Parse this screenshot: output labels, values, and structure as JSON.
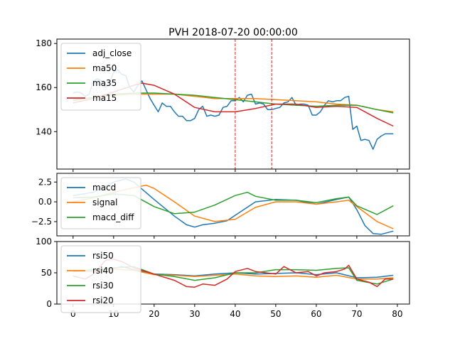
{
  "chart_data": [
    {
      "type": "line",
      "title": "PVH 2018-07-20 00:00:00",
      "xlim": [
        -4,
        83
      ],
      "ylim": [
        123,
        182
      ],
      "yticks": [
        140,
        160,
        180
      ],
      "xticks": [],
      "vlines": [
        40,
        49
      ],
      "vline_color": "#d62728",
      "legend": "upper-left",
      "series": [
        {
          "name": "adj_close",
          "color": "#1f77b4",
          "x": [
            0,
            1,
            2,
            3,
            4,
            5,
            6,
            7,
            8,
            9,
            10,
            11,
            12,
            13,
            14,
            15,
            16,
            17,
            18,
            19,
            20,
            21,
            22,
            23,
            24,
            25,
            26,
            27,
            28,
            29,
            30,
            31,
            32,
            33,
            34,
            35,
            36,
            37,
            38,
            39,
            40,
            41,
            42,
            43,
            44,
            45,
            46,
            47,
            48,
            49,
            50,
            51,
            52,
            53,
            54,
            55,
            56,
            57,
            58,
            59,
            60,
            61,
            62,
            63,
            64,
            65,
            66,
            67,
            68,
            69,
            70,
            71,
            72,
            73,
            74,
            75,
            76,
            77,
            78,
            79
          ],
          "y": [
            157.5,
            158,
            157.5,
            156,
            157,
            163,
            164,
            163,
            160,
            162,
            167,
            168,
            166,
            165.5,
            160,
            158,
            161,
            163,
            159,
            155,
            152,
            149,
            153,
            151.5,
            151.5,
            149,
            147,
            147,
            145,
            145,
            146,
            150,
            151.5,
            147,
            147.5,
            147,
            147.5,
            151,
            151.5,
            154,
            154,
            155.5,
            153.5,
            156.5,
            157,
            152.5,
            153,
            152.5,
            150,
            150,
            150.5,
            151,
            153,
            153.5,
            155.5,
            152,
            152.5,
            152.5,
            152,
            147.5,
            147.5,
            149,
            152,
            154,
            153.5,
            154,
            154,
            155.5,
            156,
            141,
            142.5,
            136,
            136.5,
            136,
            132,
            136.5,
            138,
            139,
            139,
            139
          ]
        },
        {
          "name": "ma50",
          "color": "#ff7f0e",
          "x": [
            0,
            5,
            10,
            15,
            20,
            25,
            30,
            35,
            40,
            45,
            50,
            55,
            60,
            65,
            70,
            75,
            79
          ],
          "y": [
            154.5,
            155.5,
            156.5,
            157,
            157,
            157,
            156,
            155,
            155,
            155,
            154.5,
            154,
            153.5,
            152.5,
            152,
            150,
            149
          ]
        },
        {
          "name": "ma35",
          "color": "#2ca02c",
          "x": [
            0,
            5,
            10,
            15,
            20,
            25,
            30,
            35,
            40,
            45,
            50,
            55,
            60,
            65,
            70,
            75,
            79
          ],
          "y": [
            154,
            155.5,
            157,
            157.5,
            157.5,
            157,
            156.5,
            155.5,
            154.5,
            153.5,
            152.5,
            152,
            151.5,
            152,
            152,
            150,
            148.5
          ]
        },
        {
          "name": "ma15",
          "color": "#d62728",
          "x": [
            0,
            5,
            10,
            15,
            17,
            20,
            25,
            30,
            35,
            40,
            45,
            50,
            55,
            60,
            65,
            70,
            75,
            79
          ],
          "y": [
            153,
            155,
            158,
            161,
            162,
            161,
            157,
            151,
            149,
            149,
            150.5,
            152.5,
            152.5,
            151,
            151.5,
            151,
            146,
            142.5
          ]
        }
      ]
    },
    {
      "type": "line",
      "xlim": [
        -4,
        83
      ],
      "ylim": [
        -4.3,
        3.6
      ],
      "yticks": [
        2.5,
        0.0,
        -2.5
      ],
      "ytick_labels": [
        "2.5",
        "0.0",
        "−2.5"
      ],
      "xticks": [],
      "legend": "upper-left",
      "series": [
        {
          "name": "macd",
          "color": "#1f77b4",
          "x": [
            0,
            5,
            10,
            13,
            15,
            20,
            25,
            28,
            30,
            32,
            35,
            38,
            40,
            45,
            50,
            55,
            60,
            65,
            68,
            70,
            72,
            74,
            76,
            79
          ],
          "y": [
            0.8,
            1.2,
            2.5,
            2.9,
            2.5,
            0.3,
            -1.8,
            -2.9,
            -3.2,
            -2.9,
            -2.7,
            -2.4,
            -1.7,
            0,
            0.3,
            0.2,
            -0.3,
            0.3,
            0.6,
            -1,
            -3,
            -4,
            -4.1,
            -3.7
          ]
        },
        {
          "name": "signal",
          "color": "#ff7f0e",
          "x": [
            0,
            5,
            10,
            15,
            18,
            20,
            25,
            30,
            35,
            40,
            45,
            50,
            55,
            60,
            65,
            68,
            70,
            75,
            79
          ],
          "y": [
            0,
            0.5,
            1.2,
            1.8,
            2.1,
            1.7,
            0,
            -1.8,
            -2.5,
            -2.2,
            -0.7,
            0,
            0,
            -0.3,
            0,
            0.2,
            -0.6,
            -2.5,
            -3.4
          ]
        },
        {
          "name": "macd_diff",
          "color": "#2ca02c",
          "x": [
            0,
            5,
            10,
            15,
            20,
            25,
            30,
            35,
            40,
            43,
            45,
            50,
            55,
            60,
            65,
            68,
            70,
            75,
            79
          ],
          "y": [
            0.5,
            0.6,
            1,
            0.8,
            -0.6,
            -1.5,
            -1.3,
            -0.4,
            0.8,
            1.2,
            0.7,
            0.2,
            0.2,
            -0.1,
            0.4,
            0.6,
            -0.5,
            -1.6,
            -0.5
          ]
        }
      ]
    },
    {
      "type": "line",
      "xlim": [
        -4,
        83
      ],
      "ylim": [
        0,
        100
      ],
      "yticks": [
        0,
        50,
        100
      ],
      "xticks": [
        0,
        10,
        20,
        30,
        40,
        50,
        60,
        70,
        80
      ],
      "legend": "upper-left",
      "series": [
        {
          "name": "rsi50",
          "color": "#1f77b4",
          "x": [
            0,
            5,
            10,
            12,
            15,
            20,
            25,
            30,
            35,
            40,
            45,
            50,
            55,
            60,
            65,
            70,
            75,
            79
          ],
          "y": [
            52,
            53,
            57,
            60,
            55,
            48,
            47,
            45,
            48,
            50,
            48,
            49,
            50,
            47,
            50,
            42,
            43,
            46
          ]
        },
        {
          "name": "rsi40",
          "color": "#ff7f0e",
          "x": [
            0,
            5,
            10,
            15,
            20,
            25,
            30,
            35,
            40,
            45,
            50,
            55,
            60,
            65,
            70,
            75,
            79
          ],
          "y": [
            53,
            52,
            56,
            54,
            47,
            46,
            44,
            46,
            48,
            45,
            44,
            45,
            43,
            46,
            40,
            40,
            42
          ]
        },
        {
          "name": "rsi30",
          "color": "#2ca02c",
          "x": [
            0,
            5,
            10,
            15,
            20,
            25,
            30,
            35,
            40,
            45,
            50,
            55,
            60,
            65,
            68,
            70,
            75,
            79
          ],
          "y": [
            52,
            55,
            58,
            60,
            48,
            44,
            38,
            42,
            50,
            50,
            55,
            55,
            54,
            57,
            58,
            38,
            32,
            40
          ]
        },
        {
          "name": "rsi20",
          "color": "#d62728",
          "x": [
            0,
            3,
            5,
            8,
            10,
            12,
            15,
            20,
            25,
            28,
            30,
            32,
            35,
            38,
            40,
            43,
            45,
            50,
            52,
            55,
            58,
            60,
            62,
            65,
            67,
            68,
            70,
            73,
            75,
            77,
            79
          ],
          "y": [
            45,
            40,
            48,
            70,
            72,
            68,
            58,
            48,
            38,
            28,
            27,
            32,
            30,
            40,
            52,
            57,
            52,
            48,
            60,
            50,
            52,
            45,
            50,
            52,
            56,
            62,
            40,
            35,
            28,
            40,
            40
          ]
        }
      ]
    }
  ]
}
